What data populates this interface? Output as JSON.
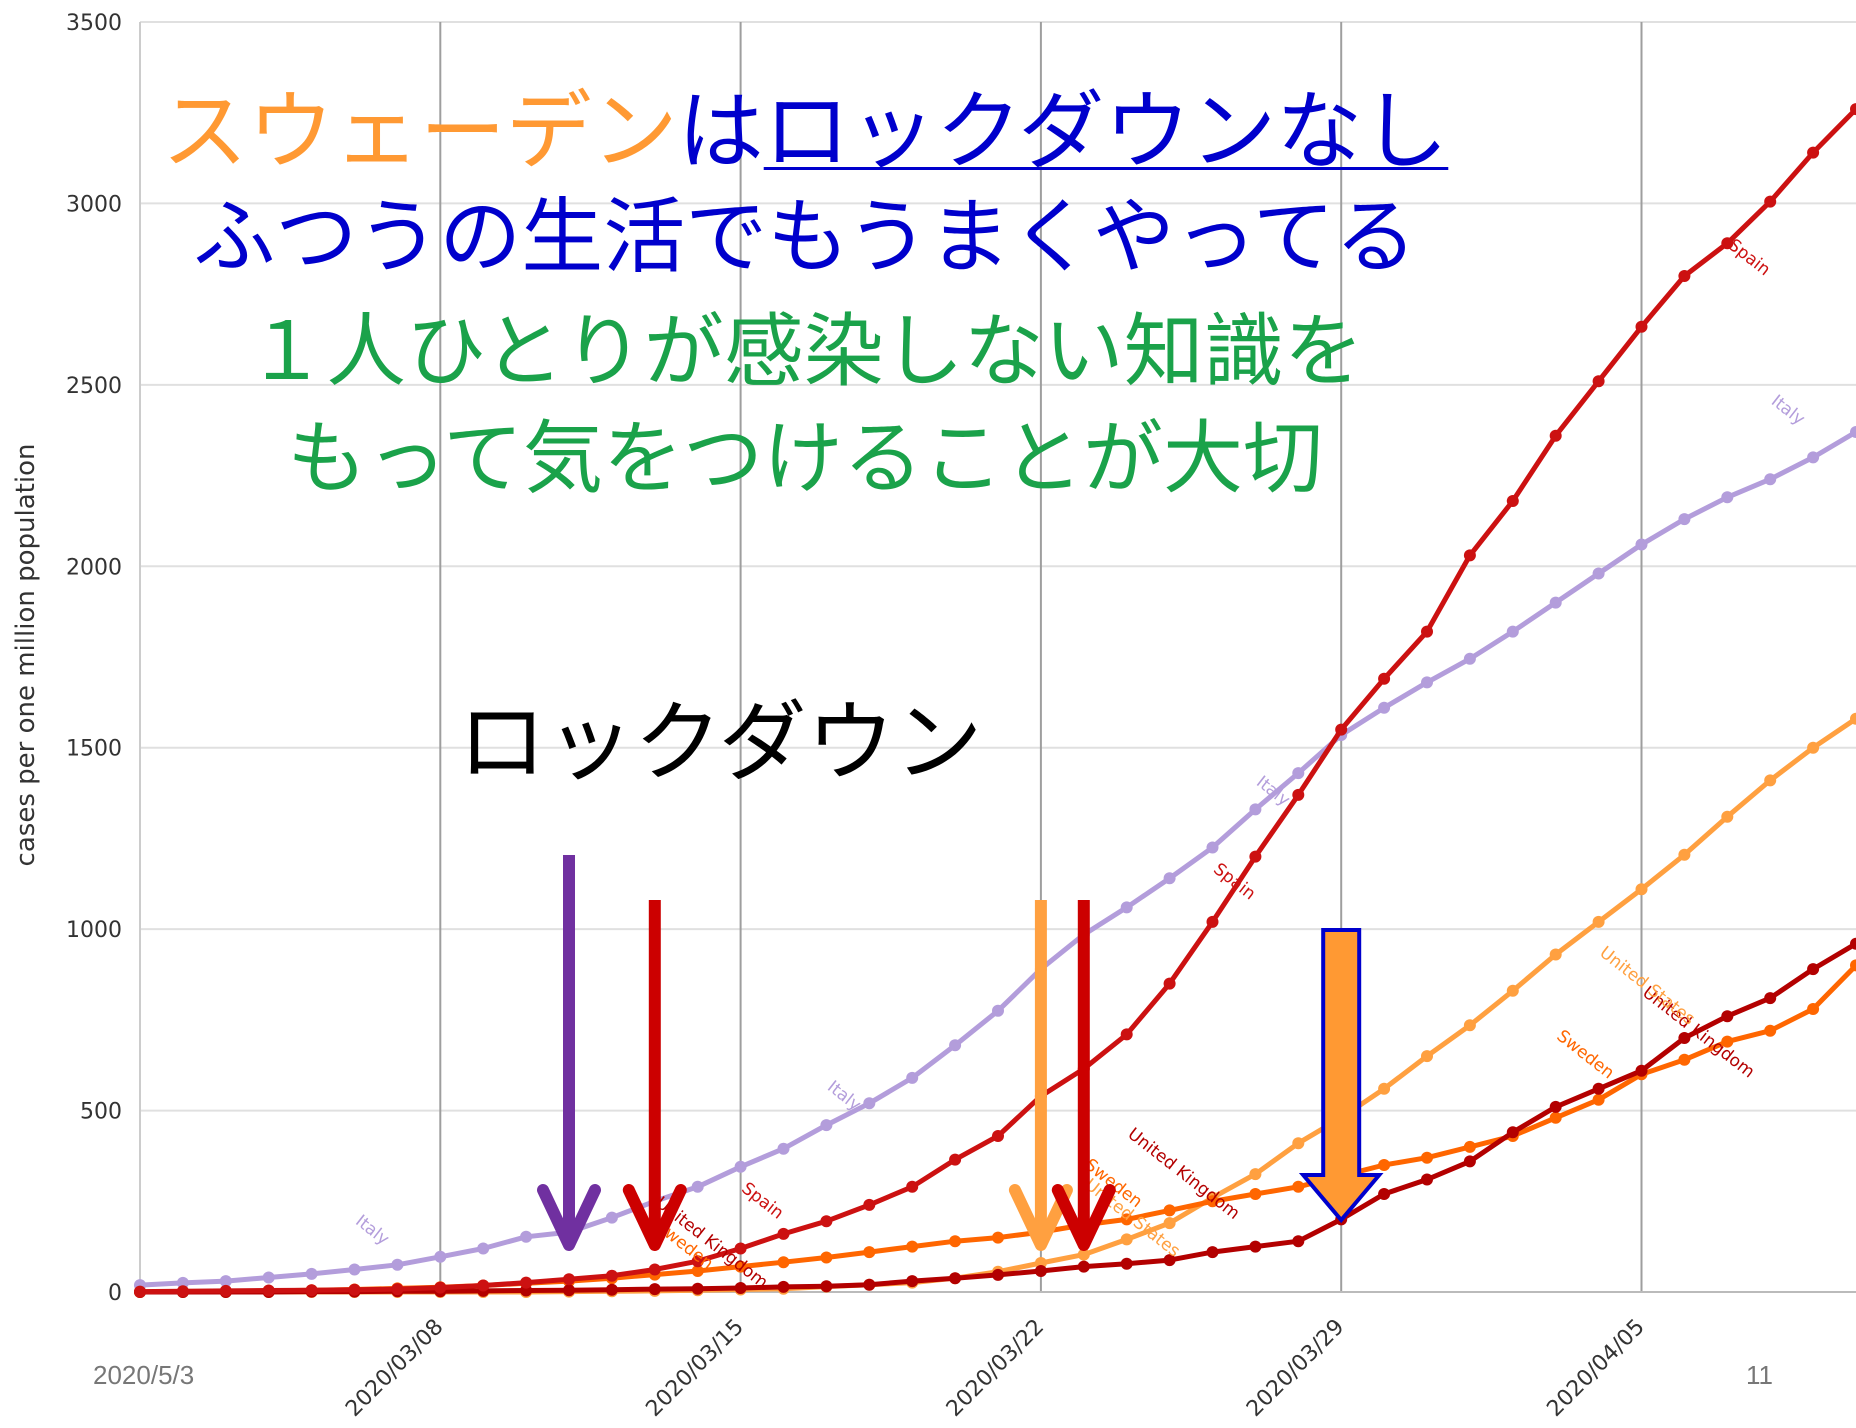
{
  "chart_data": {
    "type": "line",
    "title": "",
    "xlabel": "",
    "ylabel": "cases per one million population",
    "ylim": [
      0,
      3500
    ],
    "yticks": [
      "0",
      "500",
      "1000",
      "1500",
      "2000",
      "2500",
      "3000",
      "3500"
    ],
    "xlim": [
      "2020/03/01",
      "2020/04/10"
    ],
    "xticks": [
      "2020/03/08",
      "2020/03/15",
      "2020/03/22",
      "2020/03/29",
      "2020/04/05"
    ],
    "grid": true,
    "x_start": "2020/03/01",
    "series": [
      {
        "name": "Italy",
        "color": "#b39ddb",
        "values": [
          19,
          25,
          30,
          40,
          50,
          62,
          75,
          97,
          120,
          152,
          165,
          205,
          250,
          290,
          345,
          395,
          460,
          520,
          590,
          680,
          775,
          890,
          985,
          1060,
          1140,
          1225,
          1330,
          1430,
          1535,
          1610,
          1680,
          1745,
          1820,
          1900,
          1980,
          2060,
          2130,
          2190,
          2240,
          2300,
          2370
        ]
      },
      {
        "name": "Spain",
        "color": "#cc1111",
        "values": [
          1,
          2,
          3,
          4,
          5,
          6,
          8,
          12,
          18,
          26,
          35,
          45,
          62,
          85,
          120,
          160,
          195,
          240,
          290,
          365,
          430,
          540,
          615,
          710,
          850,
          1020,
          1200,
          1370,
          1550,
          1690,
          1820,
          2030,
          2180,
          2360,
          2510,
          2660,
          2800,
          2890,
          3005,
          3140,
          3260
        ]
      },
      {
        "name": "United Kingdom",
        "color": "#b30000",
        "values": [
          0,
          0,
          0,
          0,
          1,
          1,
          2,
          2,
          3,
          4,
          5,
          6,
          8,
          9,
          11,
          14,
          16,
          20,
          30,
          38,
          47,
          58,
          70,
          78,
          88,
          110,
          125,
          140,
          200,
          270,
          310,
          360,
          440,
          510,
          560,
          610,
          700,
          760,
          810,
          890,
          960
        ]
      },
      {
        "name": "United States",
        "color": "#ffa040",
        "values": [
          0,
          0,
          0,
          0,
          0,
          0,
          0,
          0,
          0,
          0,
          1,
          2,
          3,
          5,
          7,
          9,
          15,
          20,
          26,
          38,
          56,
          80,
          103,
          145,
          190,
          260,
          325,
          410,
          480,
          560,
          650,
          735,
          830,
          930,
          1020,
          1110,
          1205,
          1310,
          1410,
          1500,
          1580
        ]
      },
      {
        "name": "Sweden",
        "color": "#ff6600",
        "values": [
          0,
          1,
          2,
          3,
          5,
          7,
          10,
          13,
          18,
          24,
          30,
          38,
          48,
          58,
          70,
          82,
          95,
          110,
          125,
          140,
          150,
          165,
          185,
          200,
          225,
          250,
          270,
          290,
          320,
          350,
          370,
          400,
          430,
          480,
          530,
          600,
          640,
          690,
          720,
          780,
          900
        ]
      }
    ],
    "series_labels": [
      {
        "series": "Italy",
        "at": "2020/03/06",
        "value": 190,
        "text": "Italy"
      },
      {
        "series": "Italy",
        "at": "2020/03/17",
        "value": 560,
        "text": "Italy"
      },
      {
        "series": "Italy",
        "at": "2020/03/27",
        "value": 1400,
        "text": "Italy"
      },
      {
        "series": "Italy",
        "at": "2020/04/08",
        "value": 2450,
        "text": "Italy"
      },
      {
        "series": "Spain",
        "at": "2020/03/15",
        "value": 280,
        "text": "Spain"
      },
      {
        "series": "Spain",
        "at": "2020/03/26",
        "value": 1160,
        "text": "Spain"
      },
      {
        "series": "Spain",
        "at": "2020/04/07",
        "value": 2880,
        "text": "Spain"
      },
      {
        "series": "United Kingdom",
        "at": "2020/03/13",
        "value": 240,
        "text": "United Kingdom"
      },
      {
        "series": "United Kingdom",
        "at": "2020/03/24",
        "value": 430,
        "text": "United Kingdom"
      },
      {
        "series": "United Kingdom",
        "at": "2020/04/05",
        "value": 820,
        "text": "United Kingdom"
      },
      {
        "series": "Sweden",
        "at": "2020/03/13",
        "value": 175,
        "text": "Sweden"
      },
      {
        "series": "Sweden",
        "at": "2020/03/23",
        "value": 345,
        "text": "Sweden"
      },
      {
        "series": "Sweden",
        "at": "2020/04/03",
        "value": 700,
        "text": "Sweden"
      },
      {
        "series": "United States",
        "at": "2020/03/23",
        "value": 290,
        "text": "United States"
      },
      {
        "series": "United States",
        "at": "2020/04/04",
        "value": 930,
        "text": "United States"
      }
    ]
  },
  "annotations": {
    "headline1": {
      "part1": "スウェーデン",
      "part2": "は",
      "part3": "ロックダウンなし"
    },
    "headline2": "ふつうの生活でもうまくやってる",
    "headline3": {
      "part1": "１人ひとりが",
      "part2": "感染しない知識",
      "part3": "を"
    },
    "headline4": {
      "part1": "もって",
      "part2": "気",
      "part3": "をつけることが大切"
    },
    "lockdown_label": "ロックダウン",
    "arrows": [
      {
        "color": "#7030a0",
        "date": "2020/03/11"
      },
      {
        "color": "#cc0000",
        "date": "2020/03/13"
      },
      {
        "color": "#ffa040",
        "date": "2020/03/22"
      },
      {
        "color": "#cc0000",
        "date": "2020/03/23"
      },
      {
        "color": "#ff9933",
        "outline": "#0000cc",
        "date": "2020/03/29"
      }
    ]
  },
  "footer": {
    "date": "2020/5/3",
    "page": "11"
  }
}
